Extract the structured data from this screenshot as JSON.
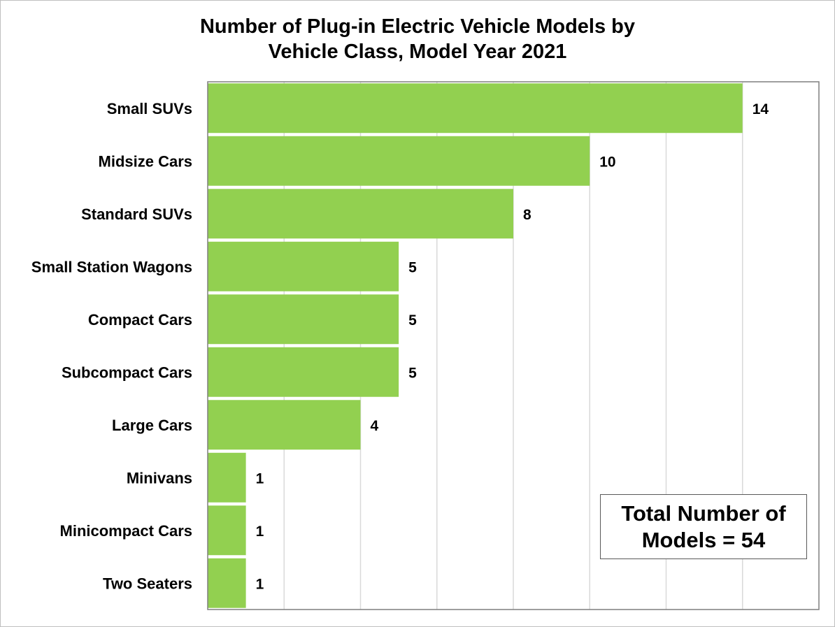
{
  "chart_data": {
    "type": "bar",
    "orientation": "horizontal",
    "title_line1": "Number of Plug-in Electric Vehicle Models by",
    "title_line2": "Vehicle Class, Model Year 2021",
    "categories": [
      "Small SUVs",
      "Midsize Cars",
      "Standard SUVs",
      "Small Station Wagons",
      "Compact Cars",
      "Subcompact Cars",
      "Large Cars",
      "Minivans",
      "Minicompact Cars",
      "Two Seaters"
    ],
    "values": [
      14,
      10,
      8,
      5,
      5,
      5,
      4,
      1,
      1,
      1
    ],
    "xlim": [
      0,
      16
    ],
    "grid": true,
    "bar_color": "#92d050",
    "annotation_line1": "Total Number of",
    "annotation_line2": "Models = 54"
  }
}
